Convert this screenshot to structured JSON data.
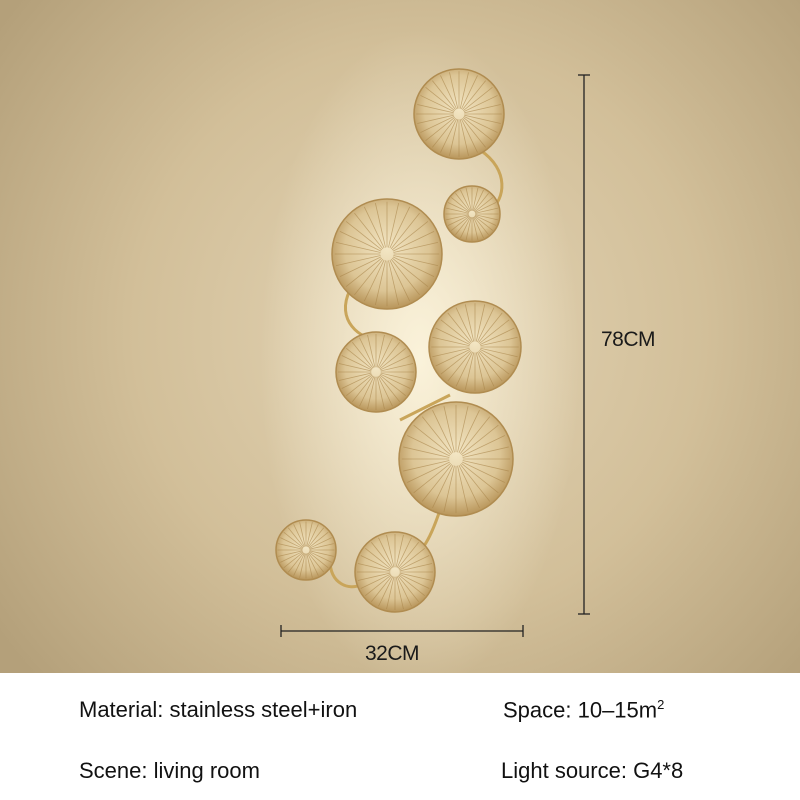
{
  "product_image": {
    "subject": "lotus-leaf-wall-lamp",
    "colors": {
      "wall": "#d8c7a3",
      "gold": "#d9c28f",
      "stem": "#c9a55a"
    }
  },
  "dimensions": {
    "height": "78CM",
    "width": "32CM"
  },
  "specs": {
    "material": "Material: stainless steel+iron",
    "space": "Space: 10–15m",
    "space_sup": "2",
    "scene": "Scene: living room",
    "light_source": "Light source: G4*8"
  }
}
